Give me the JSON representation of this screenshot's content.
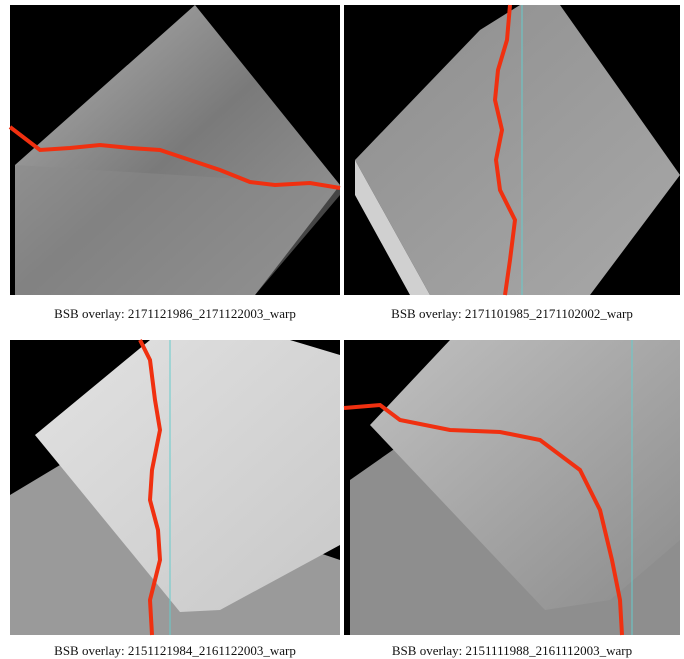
{
  "panels": [
    {
      "caption": "BSB overlay:  2171121986_2171122003_warp"
    },
    {
      "caption": "BSB overlay: 2171101985_2171102002_warp"
    },
    {
      "caption": "BSB overlay: 2151121984_2161122003_warp"
    },
    {
      "caption": "BSB overlay:  2151111988_2161112003_warp"
    }
  ]
}
